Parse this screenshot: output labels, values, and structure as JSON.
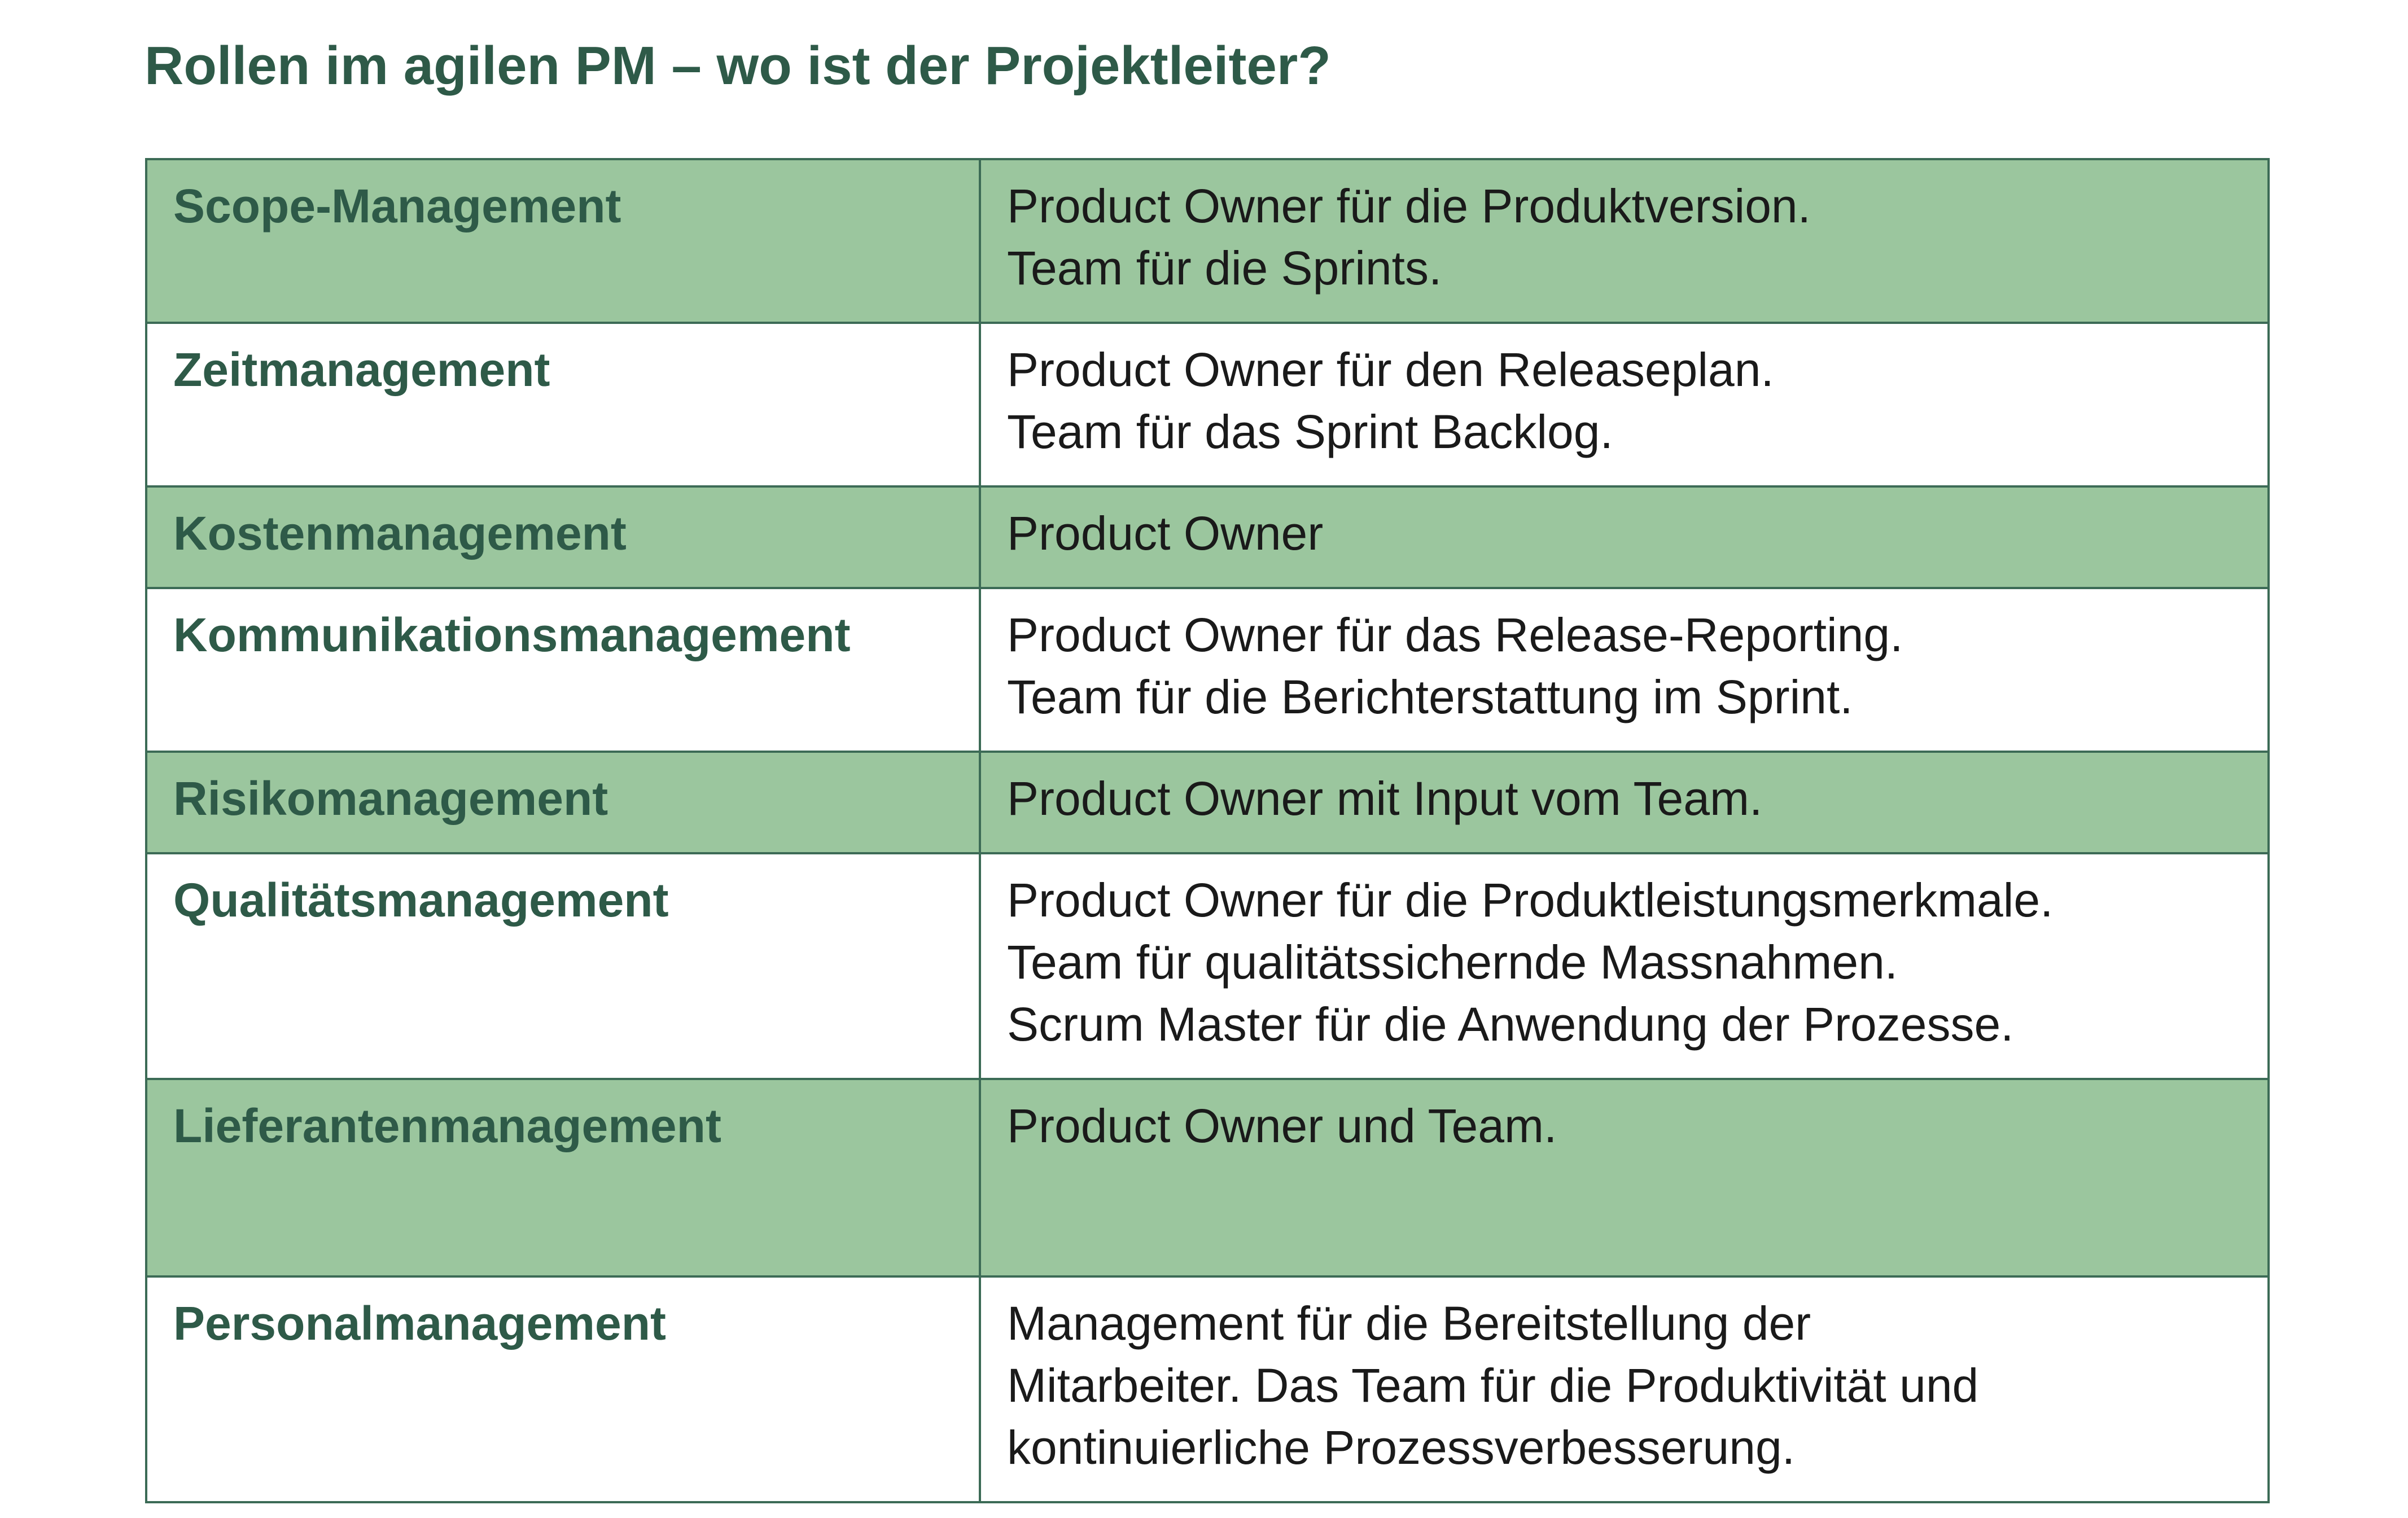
{
  "title": "Rollen im agilen PM – wo ist der Projektleiter?",
  "colors": {
    "title_text": "#2e5a48",
    "shaded_row": "#9bc69e",
    "border": "#3c6b56",
    "body_text": "#1a1a1a"
  },
  "rows": [
    {
      "area": "Scope-Management",
      "shaded": true,
      "lines": [
        "Product Owner für die Produktversion.",
        "Team für die Sprints."
      ]
    },
    {
      "area": "Zeitmanagement",
      "shaded": false,
      "lines": [
        "Product Owner für den Releaseplan.",
        "Team für das Sprint Backlog."
      ]
    },
    {
      "area": "Kostenmanagement",
      "shaded": true,
      "lines": [
        "Product Owner"
      ]
    },
    {
      "area": "Kommunikationsmanagement",
      "shaded": false,
      "lines": [
        "Product Owner für das Release-Reporting.",
        "Team für die Berichterstattung im Sprint."
      ]
    },
    {
      "area": "Risikomanagement",
      "shaded": true,
      "lines": [
        "Product Owner mit Input vom Team."
      ]
    },
    {
      "area": "Qualitätsmanagement",
      "shaded": false,
      "lines": [
        "Product Owner für die Produktleistungsmerkmale.",
        "Team für qualitätssichernde Massnahmen.",
        "Scrum Master für die Anwendung der Prozesse."
      ]
    },
    {
      "area": "Lieferantenmanagement",
      "shaded": true,
      "lines": [
        "Product Owner und Team."
      ]
    },
    {
      "area": "Personalmanagement",
      "shaded": false,
      "lines": [
        "Management für die Bereitstellung der",
        "Mitarbeiter. Das Team für die Produktivität und",
        "kontinuierliche Prozessverbesserung."
      ]
    }
  ]
}
